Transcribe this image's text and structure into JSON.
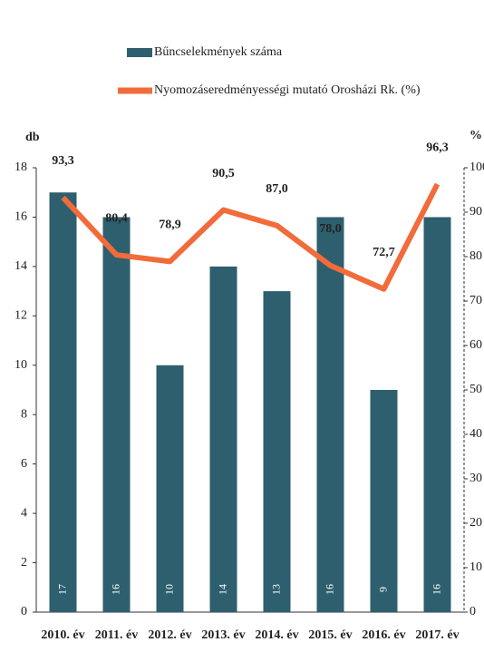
{
  "chart_data": {
    "type": "bar",
    "y_label": "db",
    "y2_label": "%",
    "categories": [
      "2010. év",
      "2011. év",
      "2012. év",
      "2013. év",
      "2014. év",
      "2015. év",
      "2016. év",
      "2017. év"
    ],
    "series": [
      {
        "name": "Bűncselekmények száma",
        "color": "#2e5f6e",
        "type": "bar",
        "values": [
          17,
          16,
          10,
          14,
          13,
          16,
          9,
          16
        ]
      },
      {
        "name": "Nyomozáseredményességi mutató Orosházi Rk. (%)",
        "color": "#f26b3a",
        "type": "line",
        "axis": "y2",
        "values": [
          93.3,
          80.4,
          78.9,
          90.5,
          87.0,
          78.0,
          72.7,
          96.3
        ],
        "value_labels": [
          "93,3",
          "80,4",
          "78,9",
          "90,5",
          "87,0",
          "78,0",
          "72,7",
          "96,3"
        ]
      }
    ],
    "ylim": [
      0,
      18
    ],
    "yticks": [
      0,
      2,
      4,
      6,
      8,
      10,
      12,
      14,
      16,
      18
    ],
    "y2lim": [
      0,
      100
    ],
    "y2ticks": [
      0,
      10,
      20,
      30,
      40,
      50,
      60,
      70,
      80,
      90,
      100
    ]
  }
}
